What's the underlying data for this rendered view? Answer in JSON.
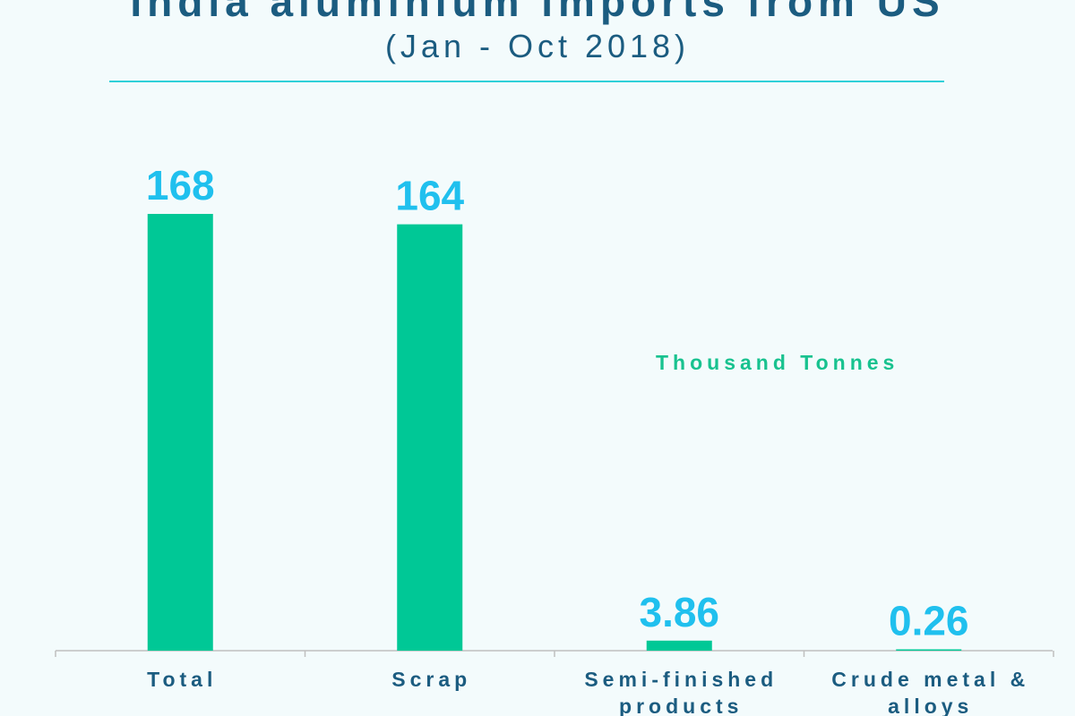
{
  "header": {
    "title": "India aluminium imports from US",
    "subtitle": "(Jan - Oct 2018)"
  },
  "units_label": "Thousand Tonnes",
  "colors": {
    "bar": "#00c896",
    "value_label": "#20c0ee",
    "text": "#1b5c80",
    "rule": "#2fd0d8"
  },
  "chart_data": {
    "type": "bar",
    "title": "India aluminium imports from US",
    "subtitle": "(Jan - Oct 2018)",
    "categories": [
      [
        "Total"
      ],
      [
        "Scrap"
      ],
      [
        "Semi-finished",
        "products"
      ],
      [
        "Crude metal &",
        "alloys"
      ]
    ],
    "values": [
      168,
      164,
      3.86,
      0.26
    ],
    "value_labels": [
      "168",
      "164",
      "3.86",
      "0.26"
    ],
    "ylabel": "Thousand Tonnes",
    "ylim": [
      0,
      168
    ],
    "grid": false,
    "legend": "none"
  }
}
